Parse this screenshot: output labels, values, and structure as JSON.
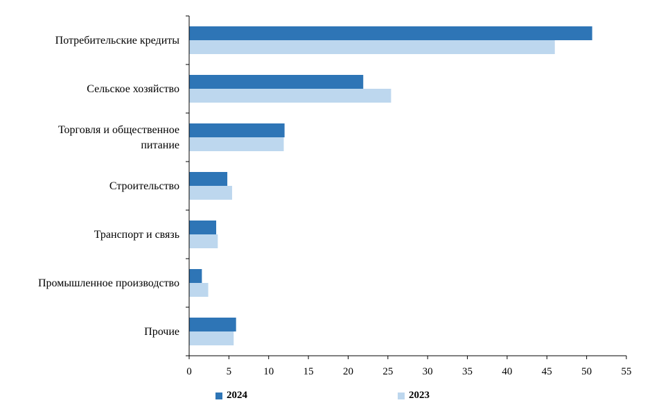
{
  "chart_data": {
    "type": "bar",
    "orientation": "horizontal",
    "categories": [
      "Потребительские  кредиты",
      "Сельское хозяйство",
      "Торговля и общественное питание",
      "Строительство",
      "Транспорт и связь",
      "Промышленное производство",
      "Прочие"
    ],
    "category_lines": [
      [
        "Потребительские  кредиты"
      ],
      [
        "Сельское хозяйство"
      ],
      [
        "Торговля и общественное",
        "питание"
      ],
      [
        "Строительство"
      ],
      [
        "Транспорт и связь"
      ],
      [
        "Промышленное производство"
      ],
      [
        "Прочие"
      ]
    ],
    "series": [
      {
        "name": "2024",
        "color": "#2E75B6",
        "values": [
          50.7,
          21.9,
          12.0,
          4.8,
          3.4,
          1.6,
          5.9
        ]
      },
      {
        "name": "2023",
        "color": "#BDD7EE",
        "values": [
          46.0,
          25.4,
          11.9,
          5.4,
          3.6,
          2.4,
          5.6
        ]
      }
    ],
    "xlim": [
      0,
      55
    ],
    "xticks": [
      0,
      5,
      10,
      15,
      20,
      25,
      30,
      35,
      40,
      45,
      50,
      55
    ],
    "grid": false,
    "legend_position": "bottom"
  }
}
